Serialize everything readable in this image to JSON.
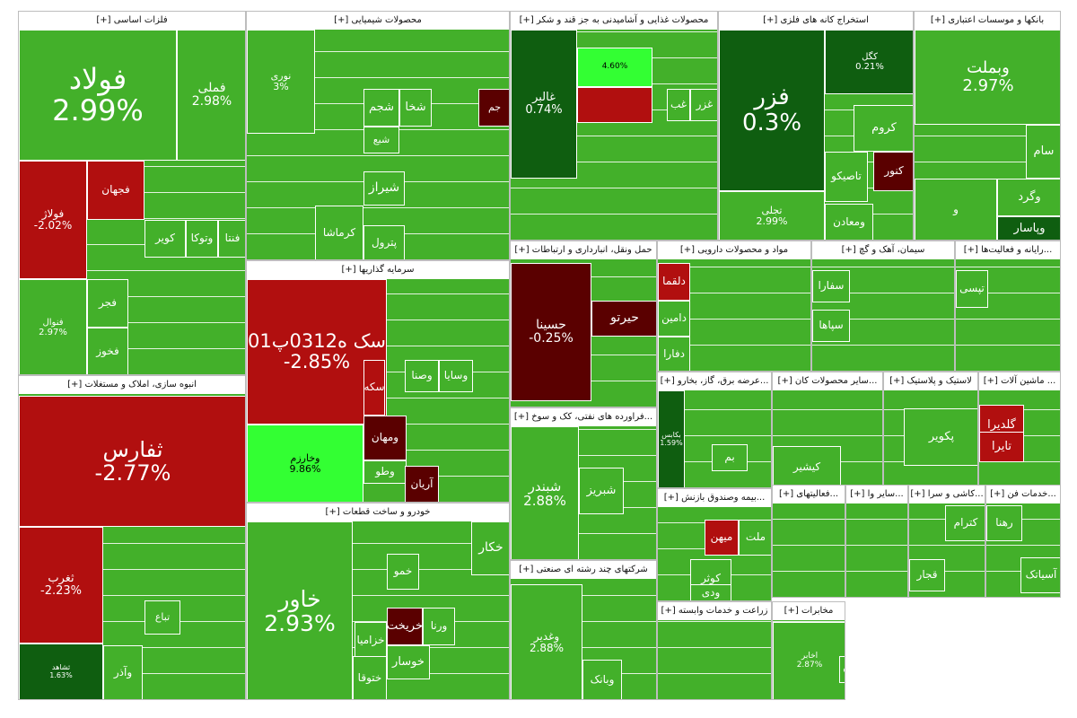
{
  "colors": {
    "strong_green": "#43b02a",
    "green": "#3c9a1f",
    "dark_green": "#0f5e10",
    "bright_green": "#33ff33",
    "red": "#b10f0f",
    "dark_red": "#5a0000",
    "header_bg": "#ffffff",
    "border": "#ffffff"
  },
  "sectors": [
    {
      "id": "base-metals",
      "title": "فلزات اساسی [+]"
    },
    {
      "id": "chemicals",
      "title": "محصولات شیمیایی [+]"
    },
    {
      "id": "food",
      "title": "محصولات غذایی و آشامیدنی به جز قند و شکر [+]"
    },
    {
      "id": "metal-ores",
      "title": "استخراج کانه های فلزی [+]"
    },
    {
      "id": "banks",
      "title": "بانکها و موسسات اعتباری [+]"
    },
    {
      "id": "investments",
      "title": "سرمایه گذاریها [+]"
    },
    {
      "id": "construction",
      "title": "انبوه سازی، املاک و مستغلات [+]"
    },
    {
      "id": "auto",
      "title": "خودرو و ساخت قطعات [+]"
    },
    {
      "id": "transport",
      "title": "حمل ونقل، انبارداری و ارتباطات [+]"
    },
    {
      "id": "pharma",
      "title": "مواد و محصولات دارویی [+]"
    },
    {
      "id": "cement",
      "title": "سیمان، آهک و گچ [+]"
    },
    {
      "id": "computer",
      "title": "...رایانه و فعالیت‌ها [+]"
    },
    {
      "id": "oil",
      "title": "...فراورده های نفتی، کک و سوخ [+]"
    },
    {
      "id": "utilities",
      "title": "...عرضه برق، گاز، بخارو [+]"
    },
    {
      "id": "mining-other",
      "title": "...سایر محصولات کان [+]"
    },
    {
      "id": "plastic",
      "title": "لاستیک و پلاستیک [+]"
    },
    {
      "id": "machinery",
      "title": "... ماشین آلات [+]"
    },
    {
      "id": "multi",
      "title": "شرکتهای چند رشته ای صنعتی [+]"
    },
    {
      "id": "insurance",
      "title": "...بیمه وصندوق بازنش [+]"
    },
    {
      "id": "activities",
      "title": "...فعالیتهای [+]"
    },
    {
      "id": "sayer-va",
      "title": "...سایر وا [+]"
    },
    {
      "id": "kashi",
      "title": "...کاشی و سرا [+]"
    },
    {
      "id": "khadamat-fan",
      "title": "...خدمات فن [+]"
    },
    {
      "id": "agri",
      "title": "زراعت و خدمات وابسته [+]"
    },
    {
      "id": "telecom",
      "title": "مخابرات [+]"
    }
  ],
  "tiles": {
    "base-metals": [
      {
        "name": "folad",
        "sym": "فولاد",
        "pct": "2.99%",
        "color": "strong_green"
      },
      {
        "name": "fameli",
        "sym": "فملی",
        "pct": "2.98%",
        "color": "strong_green"
      },
      {
        "name": "folaj",
        "sym": "فولاژ",
        "pct": "-2.02%",
        "color": "red"
      },
      {
        "name": "fajahan",
        "sym": "فجهان",
        "pct": "",
        "color": "red"
      },
      {
        "name": "fnoo",
        "sym": "فنوال",
        "pct": "2.97%",
        "color": "strong_green"
      },
      {
        "name": "kavir",
        "sym": "کویر",
        "pct": "",
        "color": "strong_green"
      },
      {
        "name": "vtooka",
        "sym": "وتوکا",
        "pct": "",
        "color": "strong_green"
      },
      {
        "name": "fena",
        "sym": "فنتا",
        "pct": "",
        "color": "strong_green"
      },
      {
        "name": "fajr",
        "sym": "فجر",
        "pct": "",
        "color": "strong_green"
      },
      {
        "name": "fakhoz",
        "sym": "فخوز",
        "pct": "",
        "color": "strong_green"
      }
    ],
    "chemicals": [
      {
        "name": "noori",
        "sym": "نوری",
        "pct": "3%",
        "color": "strong_green"
      },
      {
        "name": "shajam",
        "sym": "شجم",
        "pct": "",
        "color": "strong_green"
      },
      {
        "name": "shekha",
        "sym": "شخا",
        "pct": "",
        "color": "strong_green"
      },
      {
        "name": "shiraz",
        "sym": "شیراز",
        "pct": "",
        "color": "strong_green"
      },
      {
        "name": "kermasha",
        "sym": "کرماشا",
        "pct": "",
        "color": "strong_green"
      },
      {
        "name": "pettrol",
        "sym": "پترول",
        "pct": "",
        "color": "strong_green"
      },
      {
        "name": "shabe",
        "sym": "شبع",
        "pct": "",
        "color": "strong_green"
      },
      {
        "name": "jam",
        "sym": "جم",
        "pct": "",
        "color": "dark_red"
      }
    ],
    "food": [
      {
        "name": "ghaler",
        "sym": "غالبر",
        "pct": "0.74%",
        "color": "dark_green"
      },
      {
        "name": "ghazar",
        "sym": "غزر",
        "pct": "",
        "color": "strong_green"
      },
      {
        "name": "ghab",
        "sym": "غب",
        "pct": "",
        "color": "strong_green"
      },
      {
        "name": "ghpak",
        "sym": "",
        "pct": "4.60%",
        "color": "bright_green"
      },
      {
        "name": "ghred",
        "sym": "",
        "pct": "",
        "color": "red"
      }
    ],
    "metal-ores": [
      {
        "name": "fazar",
        "sym": "فزر",
        "pct": "0.3%",
        "color": "dark_green"
      },
      {
        "name": "kegol",
        "sym": "کگل",
        "pct": "0.21%",
        "color": "dark_green"
      },
      {
        "name": "kerom",
        "sym": "کروم",
        "pct": "",
        "color": "strong_green"
      },
      {
        "name": "tasico",
        "sym": "تاصیکو",
        "pct": "",
        "color": "strong_green"
      },
      {
        "name": "kenour",
        "sym": "کنور",
        "pct": "",
        "color": "dark_red"
      },
      {
        "name": "tajli",
        "sym": "تجلی",
        "pct": "2.99%",
        "color": "strong_green"
      },
      {
        "name": "vamaaden",
        "sym": "ومعادن",
        "pct": "",
        "color": "strong_green"
      }
    ],
    "banks": [
      {
        "name": "vbmellat",
        "sym": "وبملت",
        "pct": "2.97%",
        "color": "strong_green"
      },
      {
        "name": "sam",
        "sym": "سام",
        "pct": "",
        "color": "strong_green"
      },
      {
        "name": "vagard",
        "sym": "وگرد",
        "pct": "",
        "color": "strong_green"
      },
      {
        "name": "vpasar",
        "sym": "وپاسار",
        "pct": "",
        "color": "dark_green"
      },
      {
        "name": "vo",
        "sym": "و",
        "pct": "",
        "color": "strong_green"
      }
    ],
    "investments": [
      {
        "name": "seke",
        "sym": "سک ه0312پ01",
        "pct": "-2.85%",
        "color": "red"
      },
      {
        "name": "vkharazm",
        "sym": "وخارزم",
        "pct": "9.86%",
        "color": "bright_green"
      },
      {
        "name": "sekeh",
        "sym": "سکه",
        "pct": "",
        "color": "red"
      },
      {
        "name": "vsina",
        "sym": "وصنا",
        "pct": "",
        "color": "strong_green"
      },
      {
        "name": "vsaba",
        "sym": "وسایا",
        "pct": "",
        "color": "strong_green"
      },
      {
        "name": "vmahan",
        "sym": "ومهان",
        "pct": "",
        "color": "dark_red"
      },
      {
        "name": "vtoo",
        "sym": "وطو",
        "pct": "",
        "color": "strong_green"
      },
      {
        "name": "arian",
        "sym": "آریان",
        "pct": "",
        "color": "dark_red"
      }
    ],
    "construction": [
      {
        "name": "sefars",
        "sym": "ثفارس",
        "pct": "-2.77%",
        "color": "red"
      },
      {
        "name": "sgharb",
        "sym": "ثغرب",
        "pct": "-2.23%",
        "color": "red"
      },
      {
        "name": "sshahd",
        "sym": "ثشاهد",
        "pct": "1.63%",
        "color": "dark_green"
      },
      {
        "name": "tabaa",
        "sym": "تباع",
        "pct": "",
        "color": "strong_green"
      },
      {
        "name": "vader",
        "sym": "وآذر",
        "pct": "",
        "color": "strong_green"
      }
    ],
    "auto": [
      {
        "name": "khavar",
        "sym": "خاور",
        "pct": "2.93%",
        "color": "strong_green"
      },
      {
        "name": "khakar",
        "sym": "خکار",
        "pct": "",
        "color": "strong_green"
      },
      {
        "name": "khomo",
        "sym": "خمو",
        "pct": "",
        "color": "strong_green"
      },
      {
        "name": "kharikht",
        "sym": "خریخت",
        "pct": "",
        "color": "dark_red"
      },
      {
        "name": "khzamia",
        "sym": "خزامیا",
        "pct": "",
        "color": "strong_green"
      },
      {
        "name": "khosar",
        "sym": "خوسار",
        "pct": "",
        "color": "strong_green"
      },
      {
        "name": "khoutoga",
        "sym": "ختوقا",
        "pct": "",
        "color": "strong_green"
      },
      {
        "name": "vernaa",
        "sym": "ورنا",
        "pct": "",
        "color": "strong_green"
      }
    ],
    "transport": [
      {
        "name": "hsina",
        "sym": "حسینا",
        "pct": "-0.25%",
        "color": "dark_red"
      },
      {
        "name": "hirto",
        "sym": "حیرتو",
        "pct": "",
        "color": "dark_red"
      }
    ],
    "pharma": [
      {
        "name": "dalgma",
        "sym": "دلقما",
        "pct": "",
        "color": "red"
      },
      {
        "name": "damin",
        "sym": "دامین",
        "pct": "",
        "color": "strong_green"
      },
      {
        "name": "dafara",
        "sym": "دفارا",
        "pct": "",
        "color": "strong_green"
      }
    ],
    "cement": [
      {
        "name": "sfara",
        "sym": "سفارا",
        "pct": "",
        "color": "strong_green"
      },
      {
        "name": "sahaa",
        "sym": "سپاها",
        "pct": "",
        "color": "strong_green"
      }
    ],
    "computer": [
      {
        "name": "tapisi",
        "sym": "تپسی",
        "pct": "",
        "color": "strong_green"
      }
    ],
    "oil": [
      {
        "name": "shebandar",
        "sym": "شبندر",
        "pct": "2.88%",
        "color": "strong_green"
      },
      {
        "name": "shebriz",
        "sym": "شبریز",
        "pct": "",
        "color": "strong_green"
      }
    ],
    "utilities": [
      {
        "name": "bkabs",
        "sym": "بکابس",
        "pct": "1.59%",
        "color": "dark_green"
      },
      {
        "name": "bem",
        "sym": "بم",
        "pct": "",
        "color": "strong_green"
      }
    ],
    "mining-other": [
      {
        "name": "kesher",
        "sym": "کیشیر",
        "pct": "",
        "color": "strong_green"
      }
    ],
    "plastic": [
      {
        "name": "pakoir",
        "sym": "پکویر",
        "pct": "",
        "color": "strong_green"
      }
    ],
    "machinery": [
      {
        "name": "galdira",
        "sym": "گلدیرا",
        "pct": "",
        "color": "red"
      },
      {
        "name": "taira",
        "sym": "تایرا",
        "pct": "",
        "color": "red"
      }
    ],
    "multi": [
      {
        "name": "vghadir",
        "sym": "وغدیر",
        "pct": "2.88%",
        "color": "strong_green"
      },
      {
        "name": "vbank",
        "sym": "وبانک",
        "pct": "",
        "color": "strong_green"
      }
    ],
    "insurance": [
      {
        "name": "mellat",
        "sym": "ملت",
        "pct": "",
        "color": "strong_green"
      },
      {
        "name": "mihan",
        "sym": "میهن",
        "pct": "",
        "color": "red"
      },
      {
        "name": "kowsar",
        "sym": "کوثر",
        "pct": "",
        "color": "strong_green"
      },
      {
        "name": "vadi",
        "sym": "ودی",
        "pct": "",
        "color": "strong_green"
      }
    ],
    "activities": [],
    "sayer-va": [],
    "kashi": [
      {
        "name": "keram",
        "sym": "کترام",
        "pct": "",
        "color": "strong_green"
      },
      {
        "name": "ghajar",
        "sym": "قجار",
        "pct": "",
        "color": "strong_green"
      }
    ],
    "khadamat-fan": [
      {
        "name": "rahna",
        "sym": "رهنا",
        "pct": "",
        "color": "strong_green"
      },
      {
        "name": "asiatak",
        "sym": "آسیاتک",
        "pct": "",
        "color": "strong_green"
      }
    ],
    "agri": [],
    "telecom": [
      {
        "name": "akhaber",
        "sym": "اخابر",
        "pct": "2.87%",
        "color": "strong_green"
      },
      {
        "name": "afgh",
        "sym": "افق",
        "pct": "",
        "color": "strong_green"
      },
      {
        "name": "chekave",
        "sym": "چکاوه",
        "pct": "",
        "color": "strong_green"
      }
    ]
  }
}
